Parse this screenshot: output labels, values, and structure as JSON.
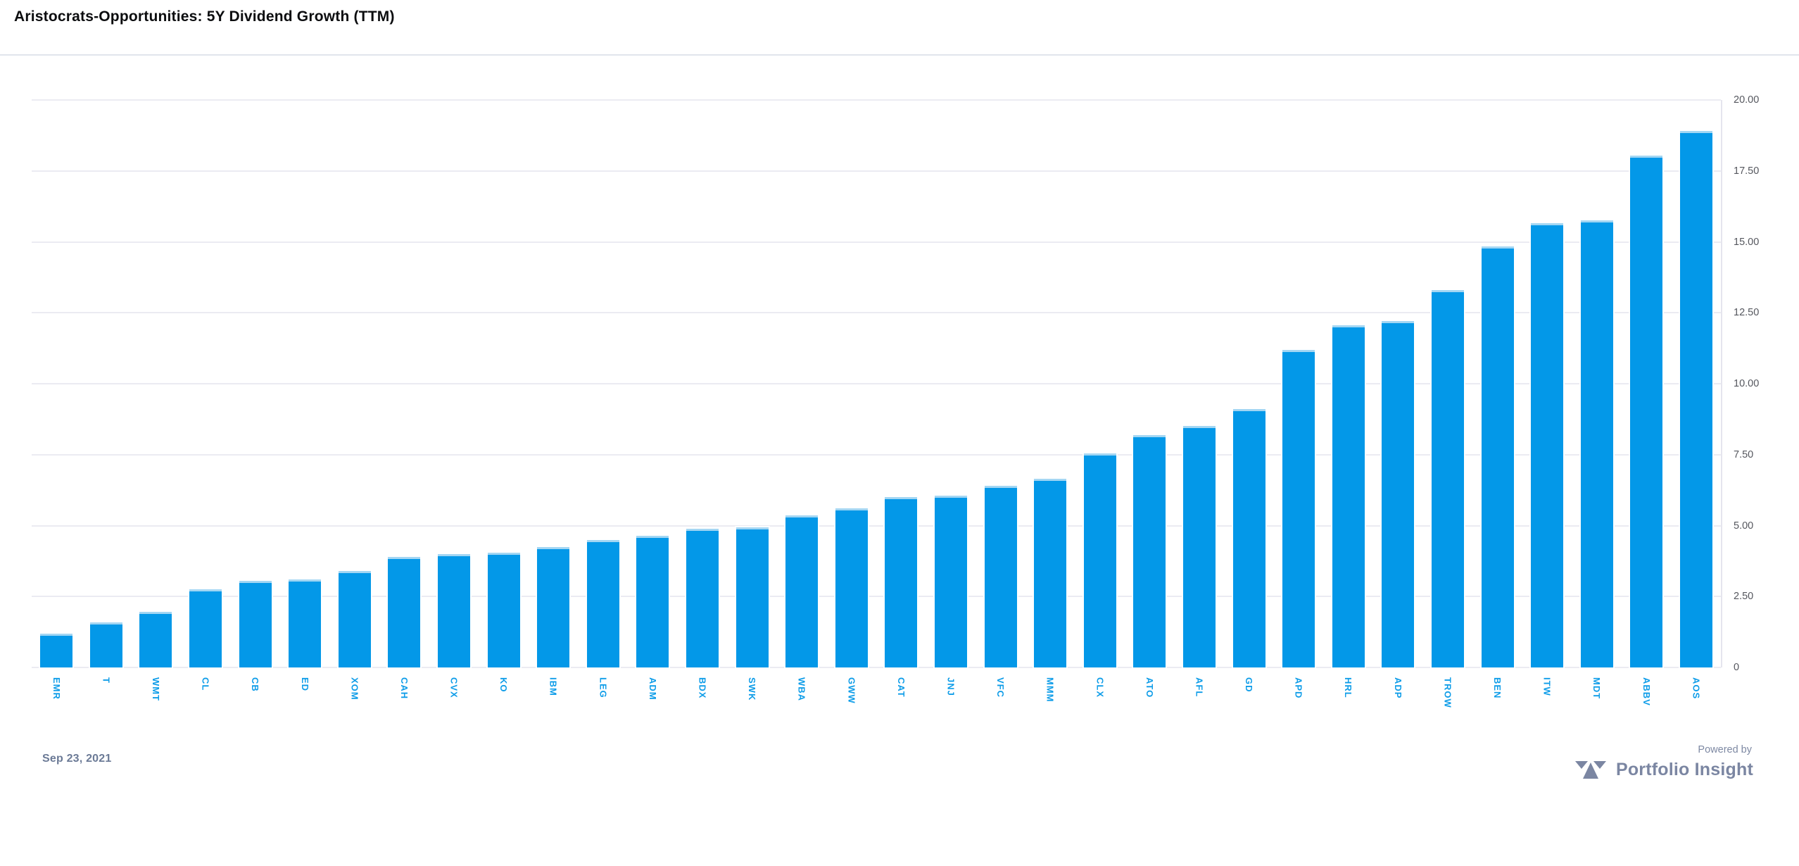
{
  "header": {
    "title": "Aristocrats-Opportunities: 5Y Dividend Growth (TTM)"
  },
  "chart_data": {
    "type": "bar",
    "title": "Aristocrats-Opportunities: 5Y Dividend Growth (TTM)",
    "categories": [
      "EMR",
      "T",
      "WMT",
      "CL",
      "CB",
      "ED",
      "XOM",
      "CAH",
      "CVX",
      "KO",
      "IBM",
      "LEG",
      "ADM",
      "BDX",
      "SWK",
      "WBA",
      "GWW",
      "CAT",
      "JNJ",
      "VFC",
      "MMM",
      "CLX",
      "ATO",
      "AFL",
      "GD",
      "APD",
      "HRL",
      "ADP",
      "TROW",
      "BEN",
      "ITW",
      "MDT",
      "ABBV",
      "AOS"
    ],
    "values": [
      1.2,
      1.6,
      1.95,
      2.75,
      3.05,
      3.1,
      3.4,
      3.9,
      4.0,
      4.05,
      4.25,
      4.5,
      4.65,
      4.9,
      4.95,
      5.35,
      5.6,
      6.0,
      6.05,
      6.4,
      6.65,
      7.55,
      8.2,
      8.5,
      9.1,
      11.2,
      12.05,
      12.2,
      13.3,
      14.85,
      15.65,
      15.75,
      18.05,
      18.9
    ],
    "xlabel": "",
    "ylabel": "",
    "ylim": [
      0,
      20
    ],
    "yticks": [
      {
        "value": 0,
        "label": "0"
      },
      {
        "value": 2.5,
        "label": "2.50"
      },
      {
        "value": 5,
        "label": "5.00"
      },
      {
        "value": 7.5,
        "label": "7.50"
      },
      {
        "value": 10,
        "label": "10.00"
      },
      {
        "value": 12.5,
        "label": "12.50"
      },
      {
        "value": 15,
        "label": "15.00"
      },
      {
        "value": 17.5,
        "label": "17.50"
      },
      {
        "value": 20,
        "label": "20.00"
      }
    ],
    "grid": true,
    "legend": false,
    "axis_side": "right",
    "bar_color": "#0398e8",
    "tick_label_color": "#0d9ce8"
  },
  "footer": {
    "date": "Sep 23, 2021",
    "powered_by": "Powered by",
    "brand": "Portfolio Insight"
  },
  "colors": {
    "bar": "#0398e8",
    "gridline": "#ebebf2",
    "axis_line": "#e5e5ee",
    "y_tick_text": "#55575e",
    "brand_text": "#7b86a2"
  }
}
